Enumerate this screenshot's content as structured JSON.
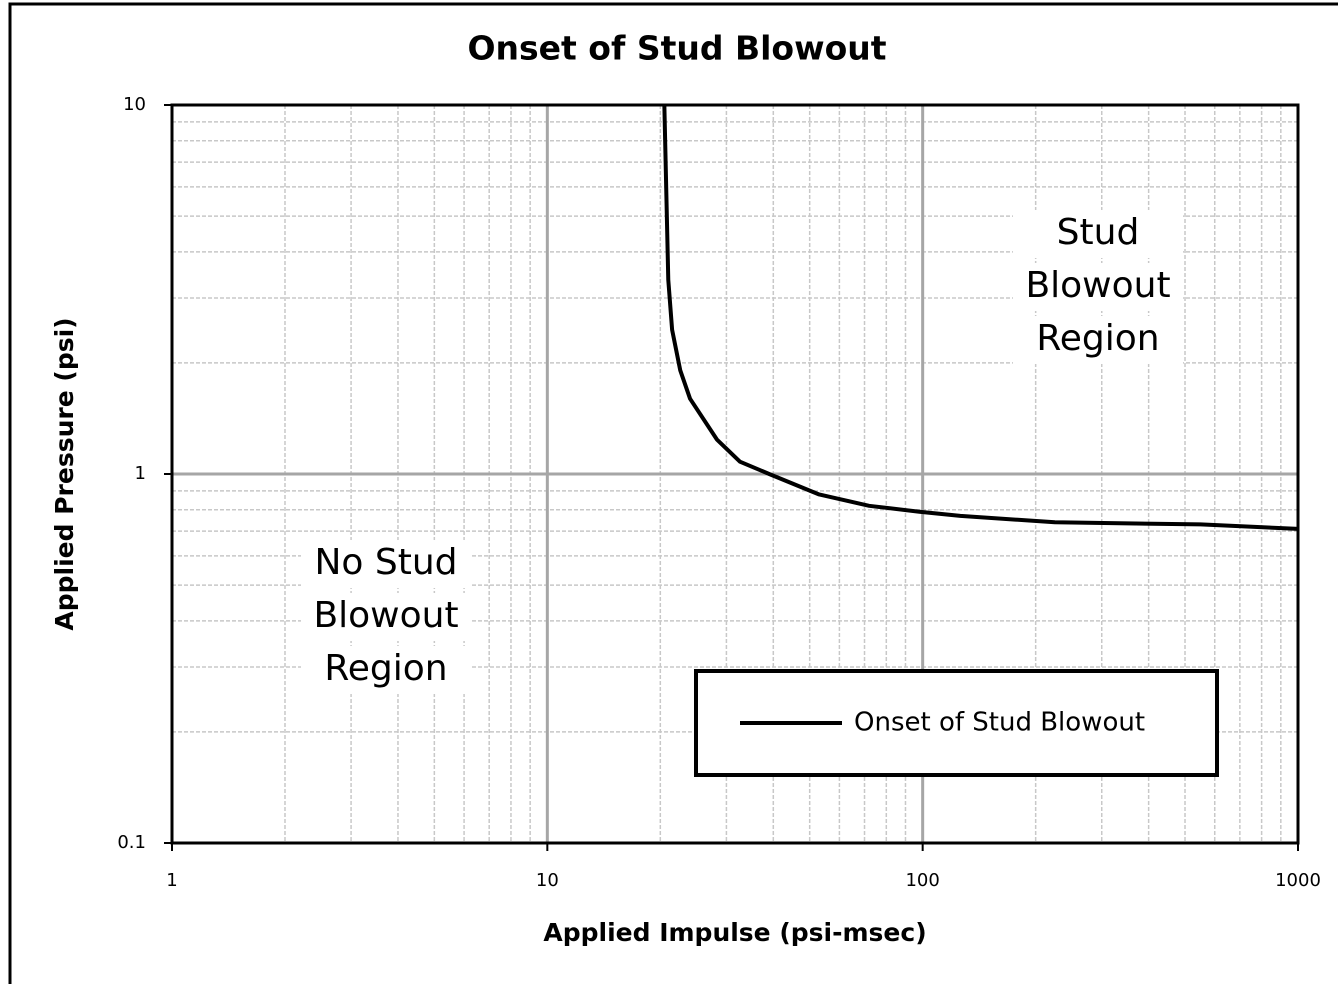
{
  "chart_data": {
    "type": "line",
    "title": "Onset of Stud Blowout",
    "xlabel": "Applied Impulse (psi-msec)",
    "ylabel": "Applied Pressure (psi)",
    "xscale": "log",
    "yscale": "log",
    "xlim": [
      1,
      1000
    ],
    "ylim": [
      0.1,
      10
    ],
    "xticks": [
      1,
      10,
      100,
      1000
    ],
    "yticks": [
      0.1,
      1,
      10
    ],
    "grid": true,
    "minor_grid": true,
    "legend": "lower right",
    "x": [
      20.5,
      21,
      21.5,
      22.6,
      24,
      28.3,
      32.6,
      39,
      53,
      72,
      98,
      126,
      225,
      550,
      1000
    ],
    "series": [
      {
        "name": "Onset of Stud Blowout",
        "color": "#000000",
        "values": [
          10,
          3.36,
          2.46,
          1.91,
          1.6,
          1.24,
          1.08,
          1.0,
          0.88,
          0.82,
          0.79,
          0.77,
          0.74,
          0.73,
          0.71
        ]
      }
    ],
    "annotations": [
      [
        "Stud",
        "Blowout",
        "Region"
      ],
      [
        "No Stud",
        "Blowout",
        "Region"
      ]
    ]
  }
}
